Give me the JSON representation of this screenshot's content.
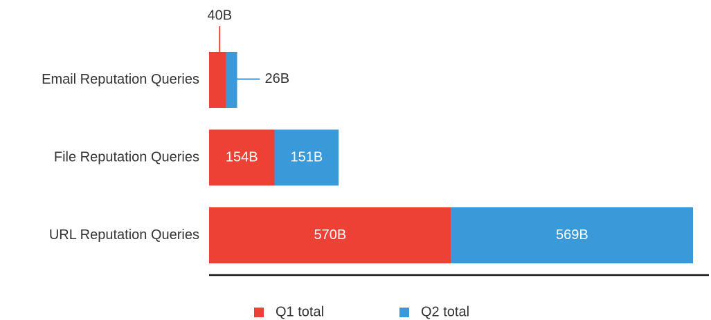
{
  "chart_data": {
    "type": "stacked_bar_horizontal",
    "categories": [
      "Email Reputation Queries",
      "File Reputation Queries",
      "URL Reputation Queries"
    ],
    "series": [
      {
        "name": "Q1 total",
        "color": "#ec4134",
        "values": [
          40,
          154,
          570
        ],
        "value_labels": [
          "40B",
          "154B",
          "570B"
        ]
      },
      {
        "name": "Q2 total",
        "color": "#3a9ad9",
        "values": [
          26,
          151,
          569
        ],
        "value_labels": [
          "26B",
          "151B",
          "569B"
        ]
      }
    ]
  }
}
